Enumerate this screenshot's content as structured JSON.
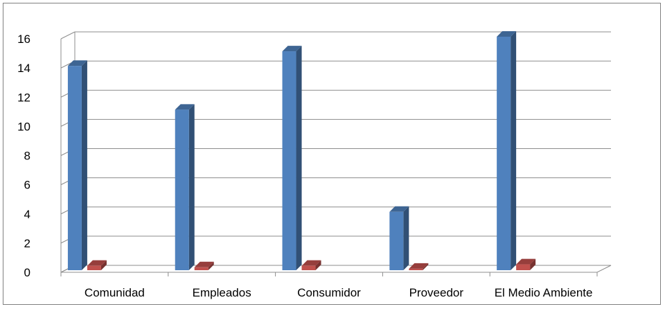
{
  "chart_data": {
    "type": "bar",
    "categories": [
      "Comunidad",
      "Empleados",
      "Consumidor",
      "Proveedor",
      "El Medio Ambiente"
    ],
    "series": [
      {
        "values": [
          14,
          11,
          15,
          4,
          16
        ],
        "color": "#4F81BD"
      },
      {
        "values": [
          0.3,
          0.2,
          0.3,
          0.1,
          0.4
        ],
        "color": "#C0504D"
      }
    ],
    "ylim": [
      0,
      16
    ],
    "yticks": [
      0,
      2,
      4,
      6,
      8,
      10,
      12,
      14,
      16
    ],
    "grid": true,
    "title": "",
    "xlabel": "",
    "ylabel": ""
  }
}
